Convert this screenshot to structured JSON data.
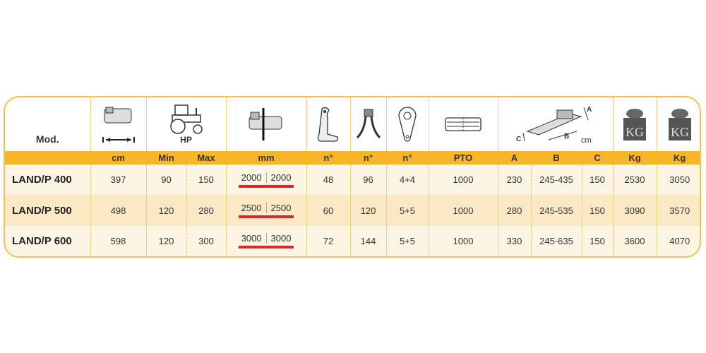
{
  "header": {
    "model_label": "Mod.",
    "hp_label": "HP",
    "dims_unit": "cm",
    "dims_letters": [
      "A",
      "B",
      "C"
    ],
    "weight_icon_text": "KG",
    "icons": [
      "mower-width-icon",
      "tractor-icon",
      "mower-offset-icon",
      "hammer-blade-icon",
      "y-blade-icon",
      "belt-pulley-icon",
      "pto-shaft-icon",
      "mower-dimensions-icon",
      "weight-icon",
      "weight-icon"
    ]
  },
  "units": [
    "cm",
    "Min",
    "Max",
    "mm",
    "n°",
    "n°",
    "n°",
    "PTO",
    "A",
    "B",
    "C",
    "Kg",
    "Kg"
  ],
  "rows": [
    {
      "model": "LAND/P 400",
      "cm": "397",
      "min": "90",
      "max": "150",
      "mm_l": "2000",
      "mm_r": "2000",
      "n1": "48",
      "n2": "96",
      "n3": "4+4",
      "pto": "1000",
      "a": "230",
      "b": "245-435",
      "c": "150",
      "kg1": "2530",
      "kg2": "3050"
    },
    {
      "model": "LAND/P 500",
      "cm": "498",
      "min": "120",
      "max": "280",
      "mm_l": "2500",
      "mm_r": "2500",
      "n1": "60",
      "n2": "120",
      "n3": "5+5",
      "pto": "1000",
      "a": "280",
      "b": "245-535",
      "c": "150",
      "kg1": "3090",
      "kg2": "3570"
    },
    {
      "model": "LAND/P 600",
      "cm": "598",
      "min": "120",
      "max": "300",
      "mm_l": "3000",
      "mm_r": "3000",
      "n1": "72",
      "n2": "144",
      "n3": "5+5",
      "pto": "1000",
      "a": "330",
      "b": "245-635",
      "c": "150",
      "kg1": "3600",
      "kg2": "4070"
    }
  ],
  "colors": {
    "accent": "#f7b52a",
    "border": "#f1c24f",
    "row_light": "#fdf5e3",
    "row_dark": "#fbe9c6",
    "offset_bar": "#e2232a"
  }
}
